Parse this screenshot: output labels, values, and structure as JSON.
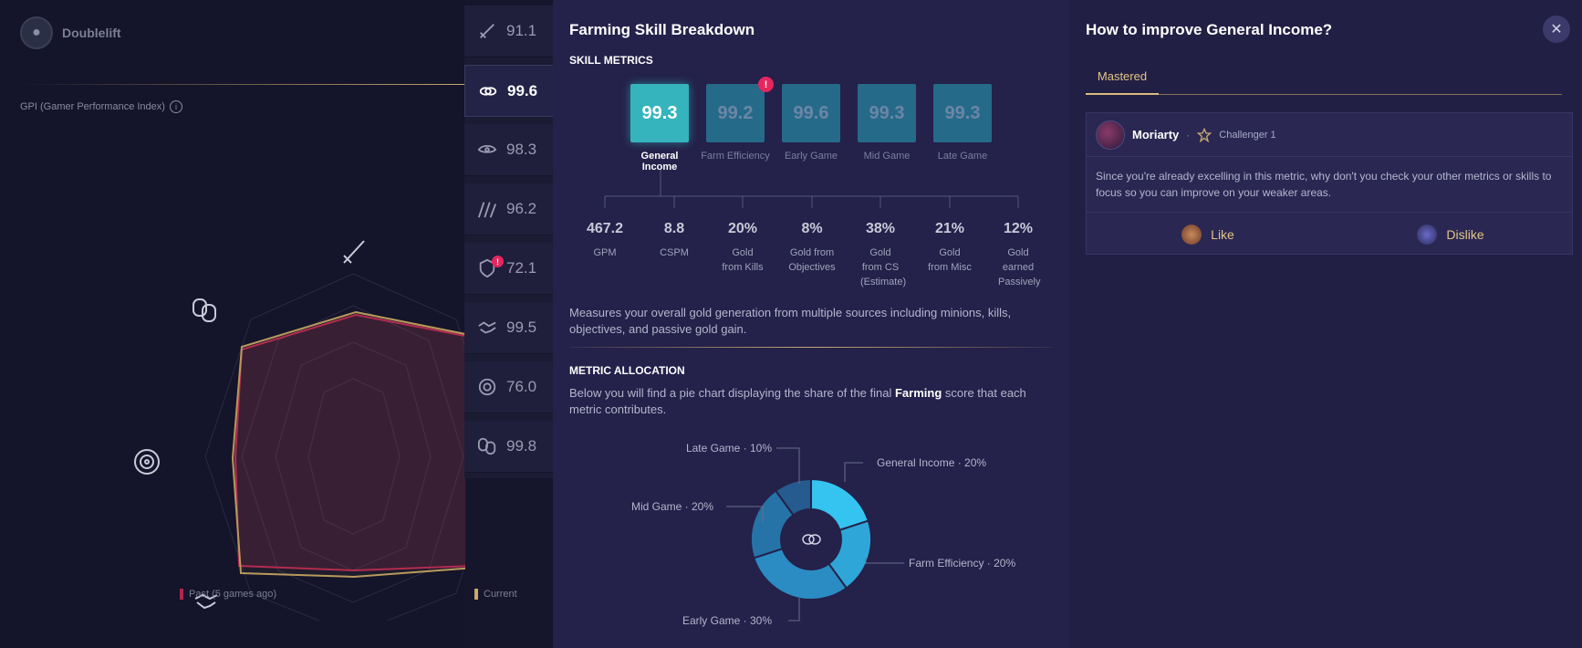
{
  "player": {
    "name": "Doublelift"
  },
  "gpi": {
    "label": "GPI (Gamer Performance Index)",
    "info_icon": "info-icon",
    "legend_past": "Past (5 games ago)",
    "legend_current": "Current",
    "colors": {
      "past": "#b2254f",
      "current": "#c7aa6e"
    }
  },
  "skill_tabs": [
    {
      "icon": "sword-icon",
      "value": "91.1",
      "alert": false
    },
    {
      "icon": "coins-icon",
      "value": "99.6",
      "alert": false,
      "active": true
    },
    {
      "icon": "eye-icon",
      "value": "98.3",
      "alert": false
    },
    {
      "icon": "claw-icon",
      "value": "96.2",
      "alert": false
    },
    {
      "icon": "shield-icon",
      "value": "72.1",
      "alert": true
    },
    {
      "icon": "handshake-icon",
      "value": "99.5",
      "alert": false
    },
    {
      "icon": "target-icon",
      "value": "76.0",
      "alert": false
    },
    {
      "icon": "masks-icon",
      "value": "99.8",
      "alert": false
    }
  ],
  "breakdown": {
    "title": "Farming Skill Breakdown",
    "skill_metrics_heading": "SKILL METRICS",
    "metrics": [
      {
        "value": "99.3",
        "label": "General Income",
        "selected": true,
        "alert": false
      },
      {
        "value": "99.2",
        "label": "Farm Efficiency",
        "selected": false,
        "alert": true
      },
      {
        "value": "99.6",
        "label": "Early Game",
        "selected": false,
        "alert": false
      },
      {
        "value": "99.3",
        "label": "Mid Game",
        "selected": false,
        "alert": false
      },
      {
        "value": "99.3",
        "label": "Late Game",
        "selected": false,
        "alert": false
      }
    ],
    "stats": [
      {
        "value": "467.2",
        "label": "GPM"
      },
      {
        "value": "8.8",
        "label": "CSPM"
      },
      {
        "value": "20%",
        "label": "Gold from Kills"
      },
      {
        "value": "8%",
        "label": "Gold from Objectives"
      },
      {
        "value": "38%",
        "label": "Gold from CS (Estimate)"
      },
      {
        "value": "21%",
        "label": "Gold from Misc"
      },
      {
        "value": "12%",
        "label": "Gold earned Passively"
      }
    ],
    "description": "Measures your overall gold generation from multiple sources including minions, kills, objectives, and passive gold gain.",
    "allocation_heading": "METRIC ALLOCATION",
    "allocation_desc_pre": "Below you will find a pie chart displaying the share of the final ",
    "allocation_desc_bold": "Farming",
    "allocation_desc_post": " score that each metric contributes."
  },
  "chart_data": {
    "type": "pie",
    "title": "",
    "donut": true,
    "center_icon": "coins-icon",
    "slices": [
      {
        "label": "General Income · 20%",
        "value": 20,
        "color": "#35c4f0"
      },
      {
        "label": "Farm Efficiency · 20%",
        "value": 20,
        "color": "#2ea7d8"
      },
      {
        "label": "Early Game · 30%",
        "value": 30,
        "color": "#2b8cc4"
      },
      {
        "label": "Mid Game · 20%",
        "value": 20,
        "color": "#2673a8"
      },
      {
        "label": "Late Game · 10%",
        "value": 10,
        "color": "#255b8e"
      }
    ]
  },
  "improve": {
    "title": "How to improve General Income?",
    "tab": "Mastered",
    "card": {
      "author": "Moriarty",
      "rank": "Challenger 1",
      "text": "Since you're already excelling in this metric, why don't you check your other metrics or skills to focus so you can improve on your weaker areas.",
      "like": "Like",
      "dislike": "Dislike"
    }
  }
}
